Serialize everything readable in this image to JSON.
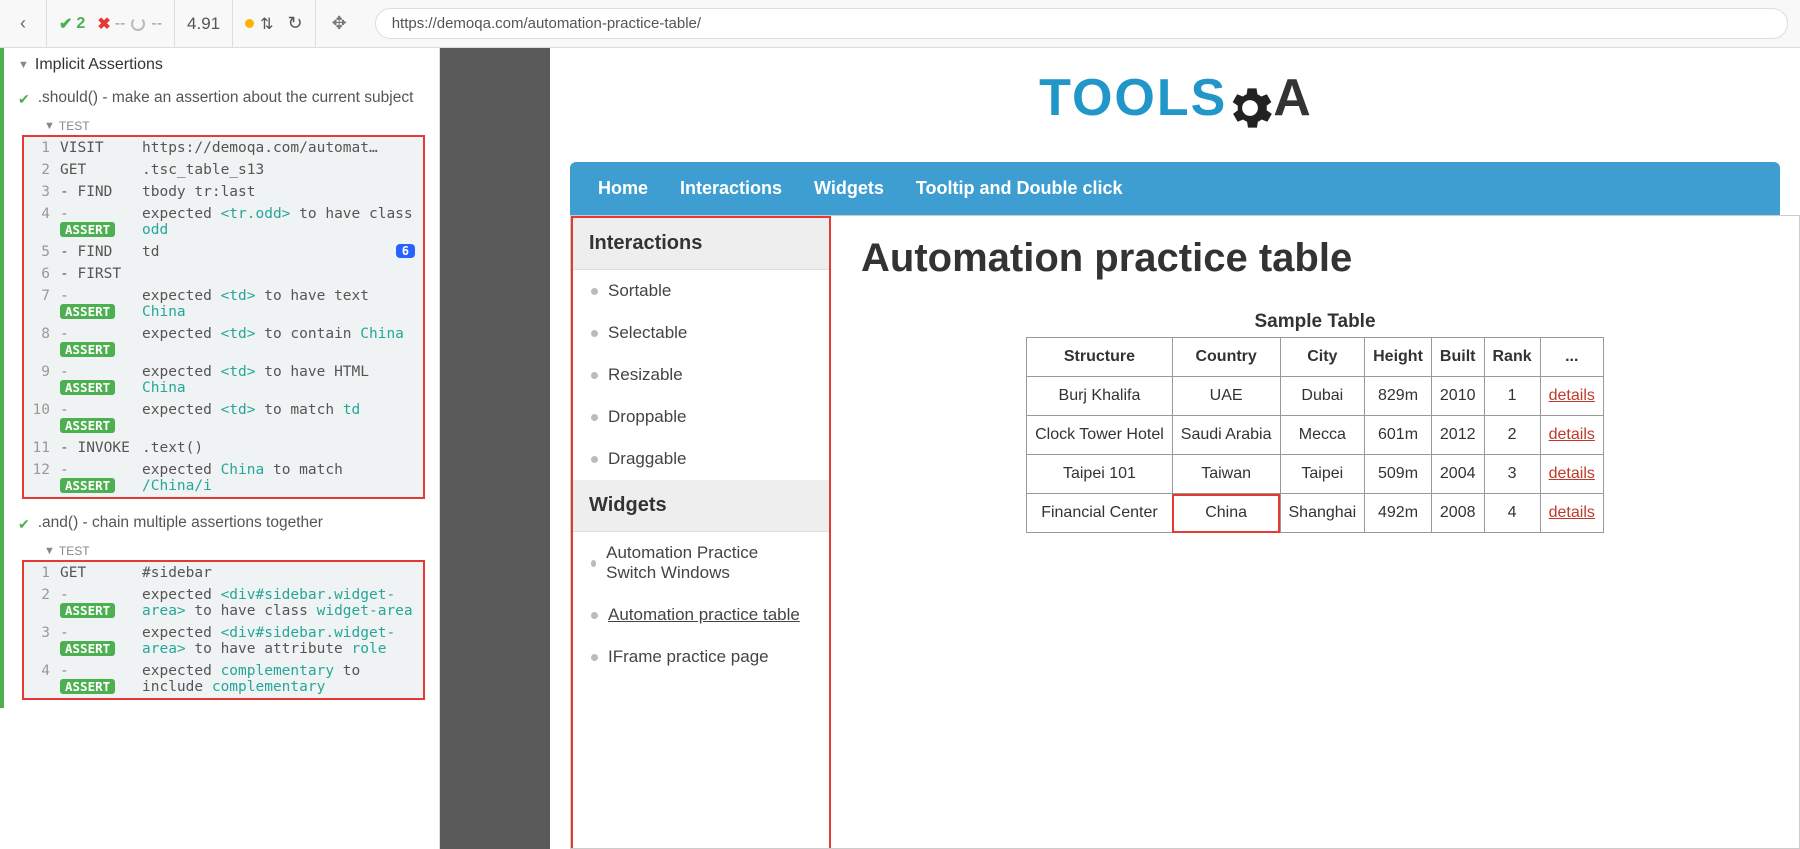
{
  "topbar": {
    "pass": "2",
    "fail": "--",
    "pending": "--",
    "dur": "4.91",
    "url": "https://demoqa.com/automation-practice-table/"
  },
  "suite": {
    "title": "Implicit Assertions"
  },
  "test1": {
    "title": ".should() - make an assertion about the current subject",
    "label": "TEST",
    "rows": [
      {
        "n": "1",
        "cmd": "VISIT",
        "plain": "https://demoqa.com/automat…"
      },
      {
        "n": "2",
        "cmd": "GET",
        "plain": ".tsc_table_s13"
      },
      {
        "n": "3",
        "cmd": "- FIND",
        "plain": "tbody tr:last"
      },
      {
        "n": "4",
        "cmd": "ASSERT",
        "html": "expected <span class='tok-e'>&lt;tr.odd&gt;</span> to have class <span class='tok-e'>odd</span>"
      },
      {
        "n": "5",
        "cmd": "- FIND",
        "plain": "td",
        "count": "6"
      },
      {
        "n": "6",
        "cmd": "- FIRST",
        "plain": ""
      },
      {
        "n": "7",
        "cmd": "ASSERT",
        "html": "expected <span class='tok-e'>&lt;td&gt;</span> to have text <span class='tok-e'>China</span>"
      },
      {
        "n": "8",
        "cmd": "ASSERT",
        "html": "expected <span class='tok-e'>&lt;td&gt;</span> to contain <span class='tok-e'>China</span>"
      },
      {
        "n": "9",
        "cmd": "ASSERT",
        "html": "expected <span class='tok-e'>&lt;td&gt;</span> to have HTML <span class='tok-e'>China</span>"
      },
      {
        "n": "10",
        "cmd": "ASSERT",
        "html": "expected <span class='tok-e'>&lt;td&gt;</span> to match <span class='tok-e'>td</span>"
      },
      {
        "n": "11",
        "cmd": "- INVOKE",
        "plain": ".text()"
      },
      {
        "n": "12",
        "cmd": "ASSERT",
        "html": "expected <span class='tok-e'>China</span> to match <span class='tok-e'>/China/i</span>"
      }
    ]
  },
  "test2": {
    "title": ".and() - chain multiple assertions together",
    "label": "TEST",
    "rows": [
      {
        "n": "1",
        "cmd": "GET",
        "plain": "#sidebar"
      },
      {
        "n": "2",
        "cmd": "ASSERT",
        "html": "expected <span class='tok-e'>&lt;div#sidebar.widget-area&gt;</span> to have class <span class='tok-e'>widget-area</span>"
      },
      {
        "n": "3",
        "cmd": "ASSERT",
        "html": "expected <span class='tok-e'>&lt;div#sidebar.widget-area&gt;</span> to have attribute <span class='tok-e'>role</span>"
      },
      {
        "n": "4",
        "cmd": "ASSERT",
        "html": "expected <span class='tok-e'>complementary</span> to include <span class='tok-e'>complementary</span>"
      }
    ]
  },
  "nav": [
    "Home",
    "Interactions",
    "Widgets",
    "Tooltip and Double click"
  ],
  "side": {
    "h1": "Interactions",
    "g1": [
      "Sortable",
      "Selectable",
      "Resizable",
      "Droppable",
      "Draggable"
    ],
    "h2": "Widgets",
    "g2": [
      "Automation Practice Switch Windows",
      "Automation practice table",
      "IFrame practice page"
    ]
  },
  "content": {
    "h1": "Automation practice table",
    "tblTitle": "Sample Table",
    "head": [
      "Structure",
      "Country",
      "City",
      "Height",
      "Built",
      "Rank",
      "..."
    ],
    "rows": [
      [
        "Burj Khalifa",
        "UAE",
        "Dubai",
        "829m",
        "2010",
        "1",
        "details"
      ],
      [
        "Clock Tower Hotel",
        "Saudi Arabia",
        "Mecca",
        "601m",
        "2012",
        "2",
        "details"
      ],
      [
        "Taipei 101",
        "Taiwan",
        "Taipei",
        "509m",
        "2004",
        "3",
        "details"
      ],
      [
        "Financial Center",
        "China",
        "Shanghai",
        "492m",
        "2008",
        "4",
        "details"
      ]
    ]
  }
}
